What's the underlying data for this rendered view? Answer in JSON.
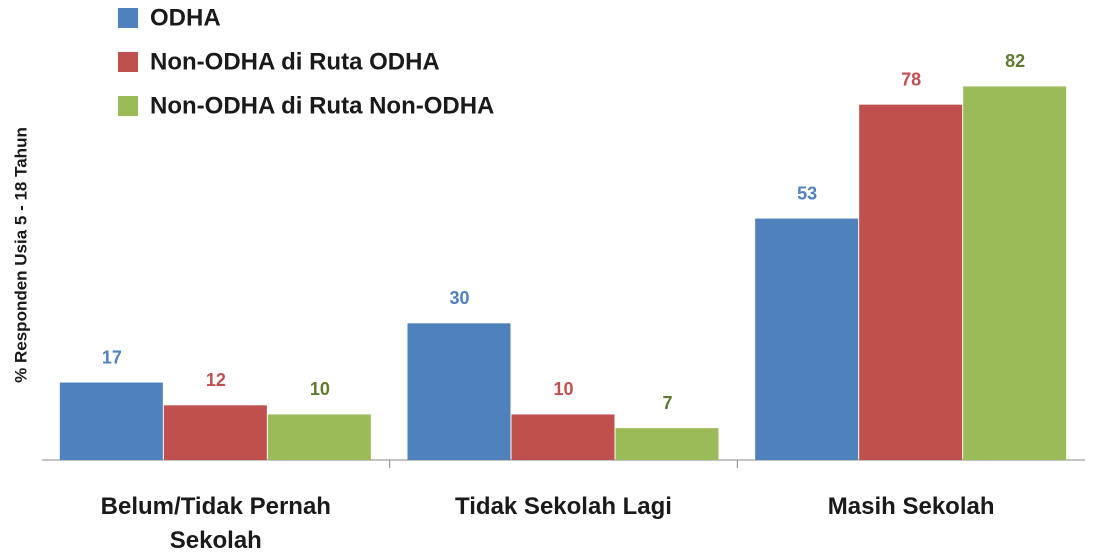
{
  "chart_data": {
    "type": "bar",
    "y_label": "% Responden  Usia 5 - 18 Tahun",
    "categories": [
      "Belum/Tidak Pernah Sekolah",
      "Tidak Sekolah Lagi",
      "Masih Sekolah"
    ],
    "series": [
      {
        "name": "ODHA",
        "color": "#4f81bd",
        "values": [
          17,
          30,
          53
        ]
      },
      {
        "name": "Non-ODHA di Ruta ODHA",
        "color": "#c0504d",
        "values": [
          12,
          10,
          78
        ]
      },
      {
        "name": "Non-ODHA di Ruta Non-ODHA",
        "color": "#9bbb59",
        "values": [
          10,
          7,
          82
        ]
      }
    ],
    "ylim": [
      0,
      90
    ]
  }
}
